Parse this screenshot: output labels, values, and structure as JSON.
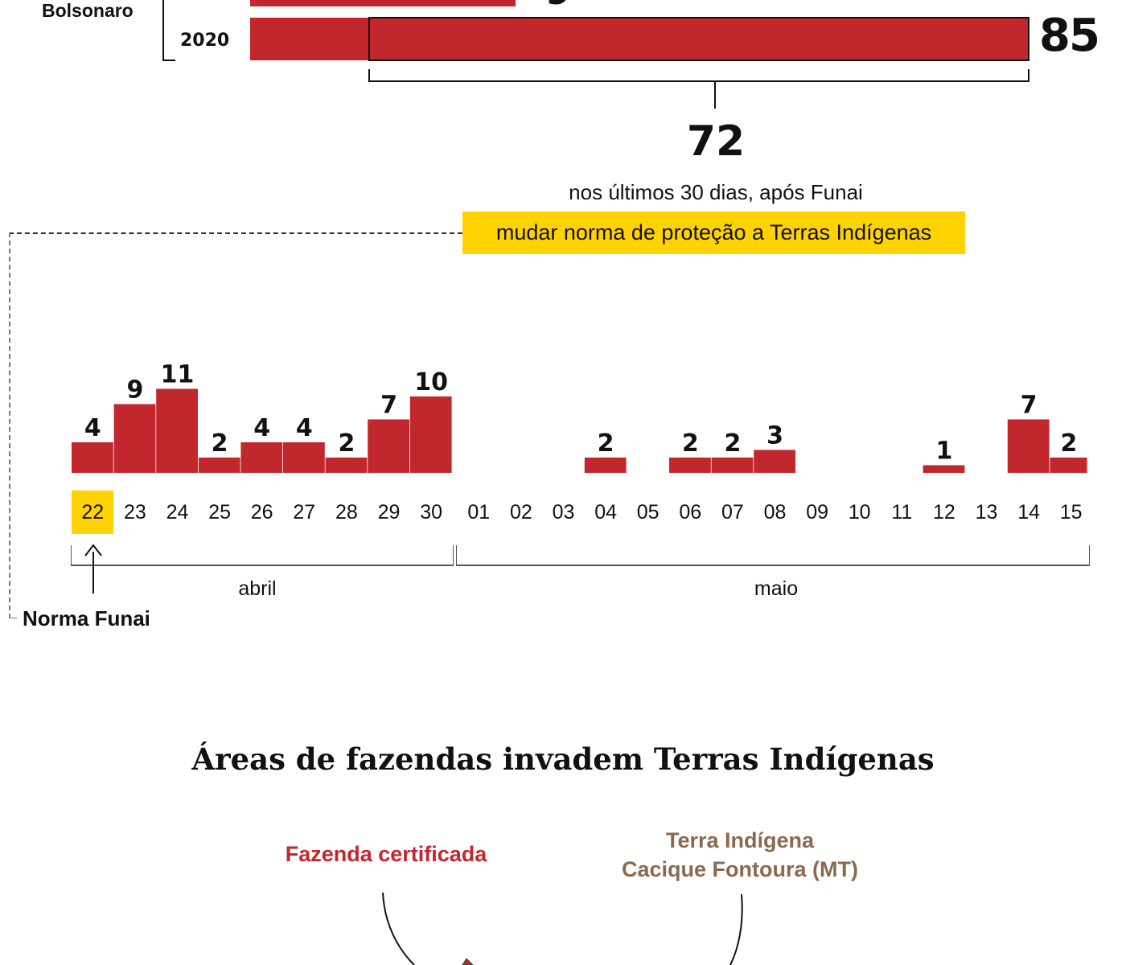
{
  "colors": {
    "bar": "#c1272d",
    "highlight": "#ffd200",
    "terra": "#8a6a4f",
    "text": "#111111"
  },
  "top_chart": {
    "group_label": "Bolsonaro",
    "rows": [
      {
        "year": "2020",
        "total": "85",
        "highlight_value": "72"
      }
    ]
  },
  "annotation": {
    "value": "72",
    "line1": "nos últimos 30 dias, após Funai",
    "line2": "mudar norma de proteção a Terras Indígenas"
  },
  "chart_data": {
    "type": "bar",
    "title": "",
    "xlabel": "",
    "ylabel": "",
    "ylim": [
      0,
      11
    ],
    "grid": false,
    "categories": [
      "22",
      "23",
      "24",
      "25",
      "26",
      "27",
      "28",
      "29",
      "30",
      "01",
      "02",
      "03",
      "04",
      "05",
      "06",
      "07",
      "08",
      "09",
      "10",
      "11",
      "12",
      "13",
      "14",
      "15"
    ],
    "months": [
      {
        "label": "abril",
        "days": [
          "22",
          "23",
          "24",
          "25",
          "26",
          "27",
          "28",
          "29",
          "30"
        ]
      },
      {
        "label": "maio",
        "days": [
          "01",
          "02",
          "03",
          "04",
          "05",
          "06",
          "07",
          "08",
          "09",
          "10",
          "11",
          "12",
          "13",
          "14",
          "15"
        ]
      }
    ],
    "values": [
      4,
      9,
      11,
      2,
      4,
      4,
      2,
      7,
      10,
      0,
      0,
      0,
      2,
      0,
      2,
      2,
      3,
      0,
      0,
      0,
      1,
      0,
      7,
      2
    ],
    "highlighted_category": "22",
    "annotation": "Norma Funai"
  },
  "section": {
    "title": "Áreas de fazendas invadem Terras Indígenas",
    "fazenda_label": "Fazenda certificada",
    "terra_label_line1": "Terra Indígena",
    "terra_label_line2": "Cacique Fontoura (MT)"
  }
}
